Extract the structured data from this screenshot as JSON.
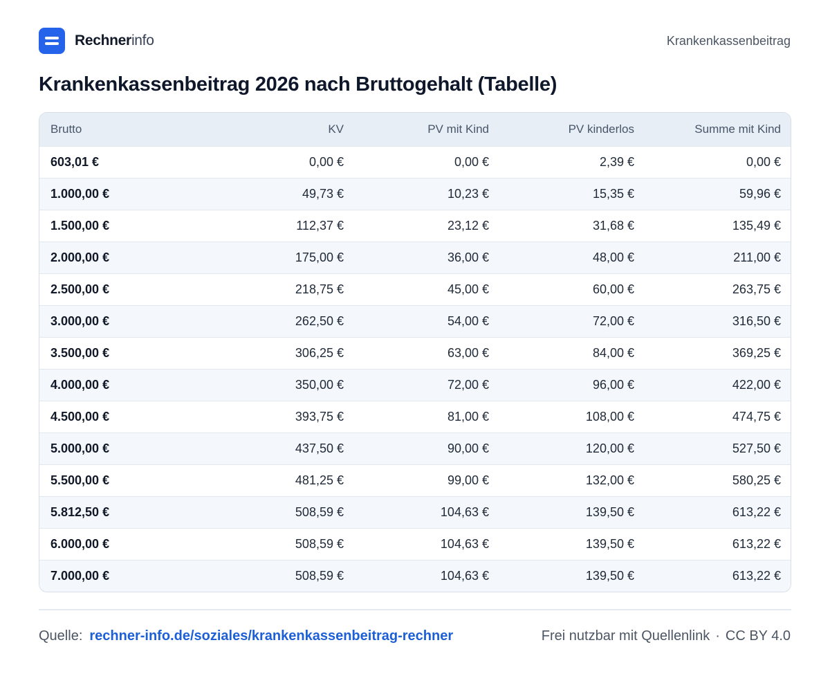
{
  "header": {
    "brand_strong": "Rechner",
    "brand_light": "info",
    "section": "Krankenkassenbeitrag"
  },
  "title": "Krankenkassenbeitrag 2026 nach Bruttogehalt (Tabelle)",
  "table": {
    "columns": [
      "Brutto",
      "KV",
      "PV mit Kind",
      "PV kinderlos",
      "Summe mit Kind"
    ],
    "rows": [
      [
        "603,01 €",
        "0,00 €",
        "0,00 €",
        "2,39 €",
        "0,00 €"
      ],
      [
        "1.000,00 €",
        "49,73 €",
        "10,23 €",
        "15,35 €",
        "59,96 €"
      ],
      [
        "1.500,00 €",
        "112,37 €",
        "23,12 €",
        "31,68 €",
        "135,49 €"
      ],
      [
        "2.000,00 €",
        "175,00 €",
        "36,00 €",
        "48,00 €",
        "211,00 €"
      ],
      [
        "2.500,00 €",
        "218,75 €",
        "45,00 €",
        "60,00 €",
        "263,75 €"
      ],
      [
        "3.000,00 €",
        "262,50 €",
        "54,00 €",
        "72,00 €",
        "316,50 €"
      ],
      [
        "3.500,00 €",
        "306,25 €",
        "63,00 €",
        "84,00 €",
        "369,25 €"
      ],
      [
        "4.000,00 €",
        "350,00 €",
        "72,00 €",
        "96,00 €",
        "422,00 €"
      ],
      [
        "4.500,00 €",
        "393,75 €",
        "81,00 €",
        "108,00 €",
        "474,75 €"
      ],
      [
        "5.000,00 €",
        "437,50 €",
        "90,00 €",
        "120,00 €",
        "527,50 €"
      ],
      [
        "5.500,00 €",
        "481,25 €",
        "99,00 €",
        "132,00 €",
        "580,25 €"
      ],
      [
        "5.812,50 €",
        "508,59 €",
        "104,63 €",
        "139,50 €",
        "613,22 €"
      ],
      [
        "6.000,00 €",
        "508,59 €",
        "104,63 €",
        "139,50 €",
        "613,22 €"
      ],
      [
        "7.000,00 €",
        "508,59 €",
        "104,63 €",
        "139,50 €",
        "613,22 €"
      ]
    ]
  },
  "footer": {
    "source_label": "Quelle:",
    "source_link": "rechner-info.de/soziales/krankenkassenbeitrag-rechner",
    "license_text": "Frei nutzbar mit Quellenlink",
    "separator": "·",
    "license": "CC BY 4.0"
  },
  "colors": {
    "accent": "#2563eb",
    "link": "#1d5fd6",
    "header_row_bg": "#e8eef6",
    "zebra_bg": "#f4f7fb"
  },
  "icons": {
    "logo": "menu-lines-icon"
  }
}
